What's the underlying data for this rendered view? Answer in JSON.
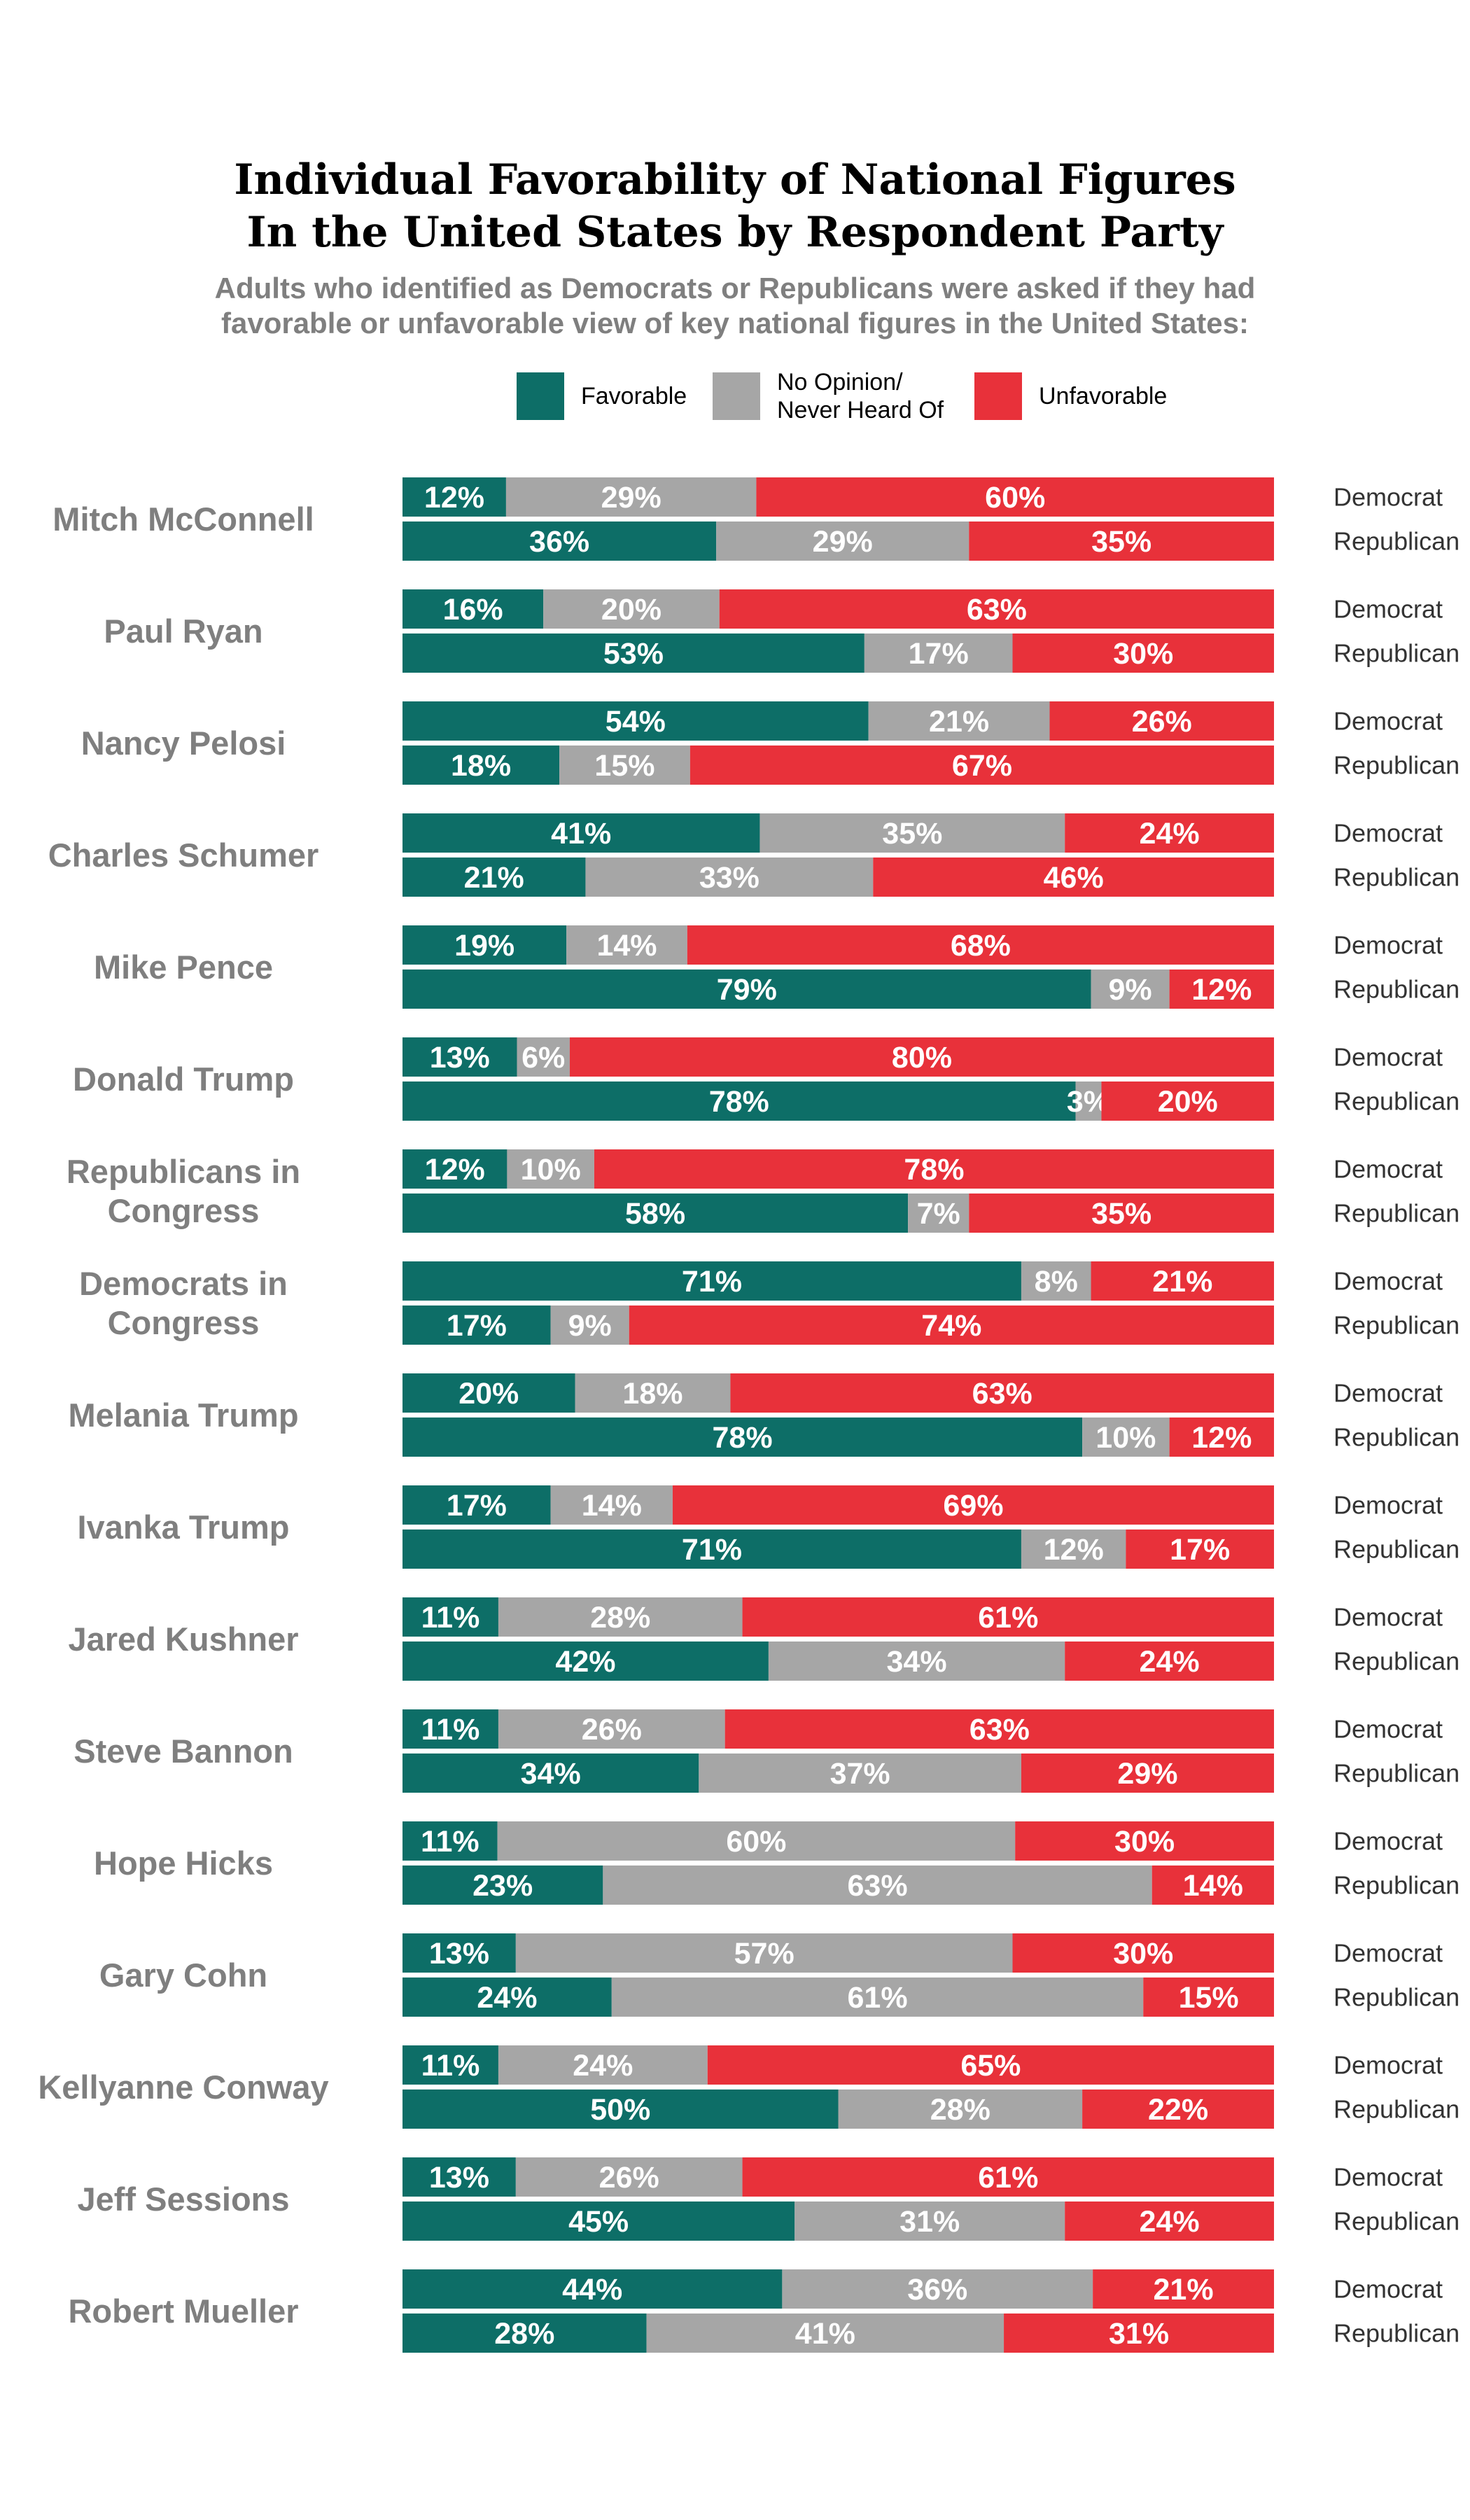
{
  "chart_data": {
    "type": "bar",
    "orientation": "horizontal",
    "stacked": true,
    "title_line1": "Individual Favorability of National Figures",
    "title_line2": "In the United States by Respondent Party",
    "subtitle_line1": "Adults who identified as Democrats or Republicans were asked if they had",
    "subtitle_line2": "favorable or unfavorable view of key national figures in the United States:",
    "legend": [
      {
        "key": "favorable",
        "label_lines": [
          "Favorable"
        ],
        "color": "#0d6e67"
      },
      {
        "key": "no_opinion",
        "label_lines": [
          "No Opinion/",
          "Never Heard Of"
        ],
        "color": "#a6a6a6"
      },
      {
        "key": "unfavorable",
        "label_lines": [
          "Unfavorable"
        ],
        "color": "#e8313a"
      }
    ],
    "groups": [
      "Democrat",
      "Republican"
    ],
    "xlim": [
      0,
      100
    ],
    "unit": "%",
    "grid": false,
    "legend_position": "top",
    "categories": [
      {
        "name_lines": [
          "Mitch McConnell"
        ],
        "democrat": [
          12,
          29,
          60
        ],
        "republican": [
          36,
          29,
          35
        ]
      },
      {
        "name_lines": [
          "Paul Ryan"
        ],
        "democrat": [
          16,
          20,
          63
        ],
        "republican": [
          53,
          17,
          30
        ]
      },
      {
        "name_lines": [
          "Nancy Pelosi"
        ],
        "democrat": [
          54,
          21,
          26
        ],
        "republican": [
          18,
          15,
          67
        ]
      },
      {
        "name_lines": [
          "Charles Schumer"
        ],
        "democrat": [
          41,
          35,
          24
        ],
        "republican": [
          21,
          33,
          46
        ]
      },
      {
        "name_lines": [
          "Mike Pence"
        ],
        "democrat": [
          19,
          14,
          68
        ],
        "republican": [
          79,
          9,
          12
        ]
      },
      {
        "name_lines": [
          "Donald Trump"
        ],
        "democrat": [
          13,
          6,
          80
        ],
        "republican": [
          78,
          3,
          20
        ]
      },
      {
        "name_lines": [
          "Republicans in",
          "Congress"
        ],
        "democrat": [
          12,
          10,
          78
        ],
        "republican": [
          58,
          7,
          35
        ]
      },
      {
        "name_lines": [
          "Democrats in",
          "Congress"
        ],
        "democrat": [
          71,
          8,
          21
        ],
        "republican": [
          17,
          9,
          74
        ]
      },
      {
        "name_lines": [
          "Melania Trump"
        ],
        "democrat": [
          20,
          18,
          63
        ],
        "republican": [
          78,
          10,
          12
        ]
      },
      {
        "name_lines": [
          "Ivanka Trump"
        ],
        "democrat": [
          17,
          14,
          69
        ],
        "republican": [
          71,
          12,
          17
        ]
      },
      {
        "name_lines": [
          "Jared Kushner"
        ],
        "democrat": [
          11,
          28,
          61
        ],
        "republican": [
          42,
          34,
          24
        ]
      },
      {
        "name_lines": [
          "Steve Bannon"
        ],
        "democrat": [
          11,
          26,
          63
        ],
        "republican": [
          34,
          37,
          29
        ]
      },
      {
        "name_lines": [
          "Hope Hicks"
        ],
        "democrat": [
          11,
          60,
          30
        ],
        "republican": [
          23,
          63,
          14
        ]
      },
      {
        "name_lines": [
          "Gary Cohn"
        ],
        "democrat": [
          13,
          57,
          30
        ],
        "republican": [
          24,
          61,
          15
        ]
      },
      {
        "name_lines": [
          "Kellyanne Conway"
        ],
        "democrat": [
          11,
          24,
          65
        ],
        "republican": [
          50,
          28,
          22
        ]
      },
      {
        "name_lines": [
          "Jeff Sessions"
        ],
        "democrat": [
          13,
          26,
          61
        ],
        "republican": [
          45,
          31,
          24
        ]
      },
      {
        "name_lines": [
          "Robert Mueller"
        ],
        "democrat": [
          44,
          36,
          21
        ],
        "republican": [
          28,
          41,
          31
        ]
      }
    ]
  }
}
